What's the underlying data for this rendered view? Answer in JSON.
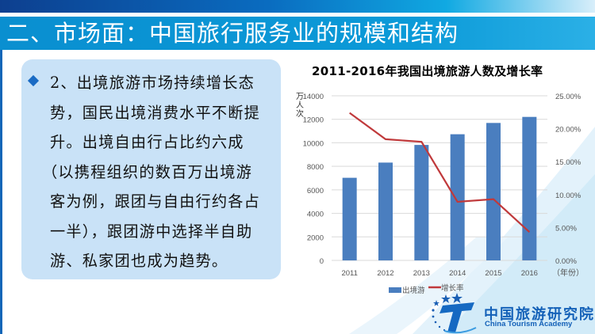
{
  "slide": {
    "title": "二、市场面：中国旅行服务业的规模和结构",
    "bullet": {
      "icon": "diamond-bullet-icon",
      "lines": [
        "2、出境旅游市场持续增长态",
        "势，国民出境消费水平不断提",
        "升。出境自由行占比约六成",
        "（以携程组织的数百万出境游",
        "客为例，跟团与自由行约各占",
        "一半），跟团游中选择半自助",
        "游、私家团也成为趋势。"
      ]
    }
  },
  "logo": {
    "name_cn": "中国旅游研究院",
    "name_en": "China Tourism Academy",
    "icon": "cta-star-t-logo-icon"
  },
  "colors": {
    "bar": "#4a7ebf",
    "line": "#c0393b",
    "title_bar": "#0b98d6",
    "panel": "#c9e2f7",
    "logo": "#1461b8"
  },
  "chart_data": {
    "type": "bar+line",
    "title": "2011-2016年我国出境旅游人数及增长率",
    "categories": [
      "2011",
      "2012",
      "2013",
      "2014",
      "2015",
      "2016"
    ],
    "xlabel": "（年份）",
    "ylabel": "万人次",
    "ylabel_chars": [
      "万",
      "人",
      "次"
    ],
    "ylim": [
      0,
      14000
    ],
    "yticks": [
      "0",
      "2000",
      "4000",
      "6000",
      "8000",
      "10000",
      "12000",
      "14000"
    ],
    "y2lim": [
      0,
      25
    ],
    "y2ticks": [
      "0.00%",
      "5.00%",
      "10.00%",
      "15.00%",
      "20.00%",
      "25.00%"
    ],
    "grid": true,
    "legend_position": "bottom",
    "series": [
      {
        "name": "出境游",
        "type": "bar",
        "axis": "left",
        "values": [
          7025,
          8318,
          9819,
          10728,
          11689,
          12203
        ]
      },
      {
        "name": "增长率",
        "type": "line",
        "axis": "right",
        "unit": "%",
        "values": [
          22.4,
          18.4,
          18.0,
          8.9,
          9.3,
          4.3
        ]
      }
    ]
  }
}
